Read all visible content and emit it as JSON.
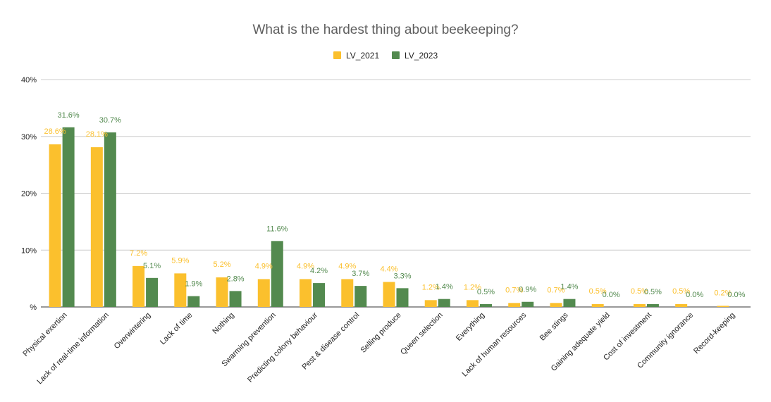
{
  "chart_data": {
    "type": "bar",
    "title": "What is the hardest thing about beekeeping?",
    "xlabel": "",
    "ylabel": "",
    "ylim": [
      0,
      40
    ],
    "y_ticks": [
      "%",
      "10%",
      "20%",
      "30%",
      "40%"
    ],
    "grid": true,
    "legend_position": "top",
    "categories": [
      "Physical exertion",
      "Lack of real-time information",
      "Overwintering",
      "Lack of time",
      "Nothing",
      "Swarming prevention",
      "Predicting colony behaviour",
      "Pest & disease control",
      "Selling produce",
      "Queen selection",
      "Everything",
      "Lack of human resources",
      "Bee stings",
      "Gaining adequate yield",
      "Cost of investment",
      "Community ignorance",
      "Record-keeping"
    ],
    "series": [
      {
        "name": "LV_2021",
        "color": "#fbc02d",
        "values": [
          28.6,
          28.1,
          7.2,
          5.9,
          5.2,
          4.9,
          4.9,
          4.9,
          4.4,
          1.2,
          1.2,
          0.7,
          0.7,
          0.5,
          0.5,
          0.5,
          0.2
        ],
        "labels": [
          "28.6%",
          "28.1%",
          "7.2%",
          "5.9%",
          "5.2%",
          "4.9%",
          "4.9%",
          "4.9%",
          "4.4%",
          "1.2%",
          "1.2%",
          "0.7%",
          "0.7%",
          "0.5%",
          "0.5%",
          "0.5%",
          "0.2%"
        ]
      },
      {
        "name": "LV_2023",
        "color": "#538a4f",
        "values": [
          31.6,
          30.7,
          5.1,
          1.9,
          2.8,
          11.6,
          4.2,
          3.7,
          3.3,
          1.4,
          0.5,
          0.9,
          1.4,
          0.0,
          0.5,
          0.0,
          0.0
        ],
        "labels": [
          "31.6%",
          "30.7%",
          "5.1%",
          "1.9%",
          "2.8%",
          "11.6%",
          "4.2%",
          "3.7%",
          "3.3%",
          "1.4%",
          "0.5%",
          "0.9%",
          "1.4%",
          "0.0%",
          "0.5%",
          "0.0%",
          "0.0%"
        ]
      }
    ]
  }
}
